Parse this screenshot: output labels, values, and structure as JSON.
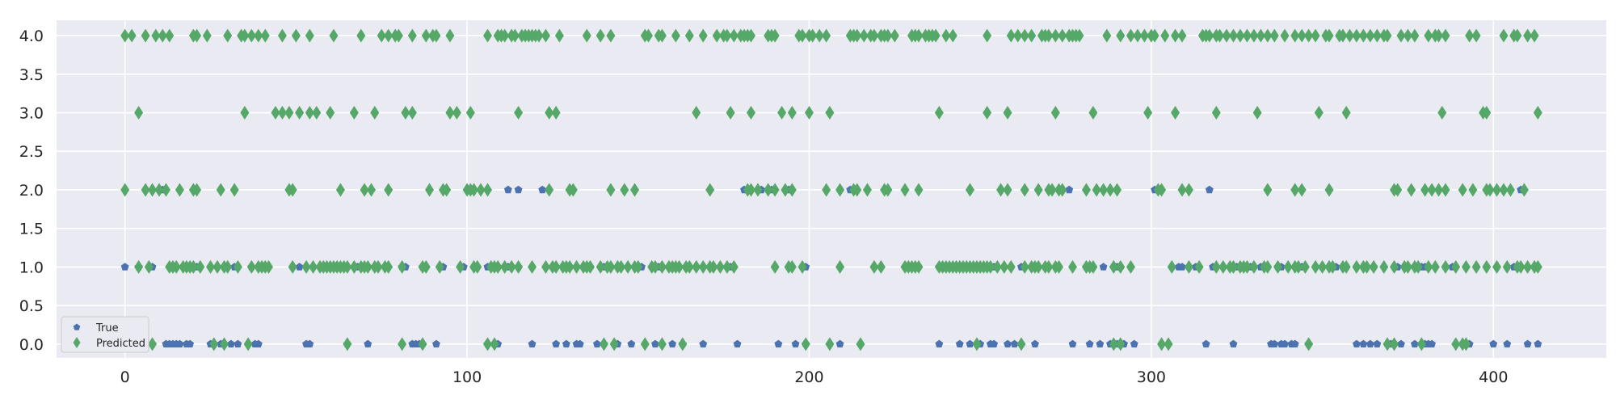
{
  "chart_data": {
    "type": "scatter",
    "title": "",
    "xlabel": "",
    "ylabel": "",
    "xlim": [
      -20,
      433
    ],
    "ylim": [
      -0.18,
      4.2
    ],
    "xticks": [
      0,
      100,
      200,
      300,
      400
    ],
    "xtick_labels": [
      "0",
      "100",
      "200",
      "300",
      "400"
    ],
    "yticks": [
      0.0,
      0.5,
      1.0,
      1.5,
      2.0,
      2.5,
      3.0,
      3.5,
      4.0
    ],
    "ytick_labels": [
      "0.0",
      "0.5",
      "1.0",
      "1.5",
      "2.0",
      "2.5",
      "3.0",
      "3.5",
      "4.0"
    ],
    "grid": true,
    "legend_position": "lower-left",
    "colors": {
      "background": "#eaeaf2",
      "grid": "#ffffff",
      "true": "#4c72b0",
      "predicted": "#55a868"
    },
    "series": [
      {
        "name": "True",
        "marker": "pentagon",
        "points": {
          "0": [
            8,
            12,
            13,
            14,
            15,
            16,
            18,
            19,
            25,
            26,
            28,
            31,
            33,
            38,
            39,
            53,
            54,
            65,
            71,
            84,
            85,
            86,
            91,
            106,
            109,
            119,
            126,
            129,
            132,
            133,
            138,
            140,
            144,
            148,
            155,
            160,
            163,
            169,
            179,
            191,
            196,
            199,
            209,
            238,
            244,
            247,
            250,
            253,
            254,
            258,
            260,
            266,
            277,
            282,
            285,
            288,
            290,
            292,
            295,
            316,
            324,
            335,
            336,
            338,
            339,
            341,
            342,
            346,
            360,
            362,
            364,
            366,
            370,
            373,
            377,
            380,
            381,
            382,
            393,
            400,
            404,
            410,
            413
          ],
          "1": [
            0,
            4,
            8,
            15,
            18,
            21,
            29,
            32,
            37,
            51,
            58,
            61,
            68,
            71,
            73,
            81,
            82,
            87,
            93,
            99,
            106,
            109,
            112,
            115,
            125,
            140,
            151,
            156,
            164,
            177,
            199,
            238,
            250,
            253,
            254,
            262,
            266,
            269,
            281,
            286,
            290,
            308,
            309,
            313,
            318,
            325,
            329,
            332,
            337,
            338,
            344,
            350,
            354,
            365,
            372,
            379,
            380,
            388,
            406,
            410
          ],
          "2": [
            11,
            112,
            115,
            122,
            181,
            186,
            189,
            194,
            212,
            276,
            301,
            317,
            408
          ]
        }
      },
      {
        "name": "Predicted",
        "marker": "diamond",
        "points": {
          "0": [
            8,
            26,
            29,
            36,
            65,
            81,
            87,
            106,
            108,
            140,
            143,
            152,
            157,
            163,
            199,
            206,
            215,
            249,
            262,
            289,
            291,
            303,
            305,
            346,
            369,
            371,
            379,
            389,
            391,
            392
          ],
          "1": [
            4,
            7,
            13,
            14,
            15,
            17,
            18,
            19,
            20,
            22,
            25,
            27,
            29,
            30,
            33,
            37,
            39,
            40,
            41,
            42,
            49,
            53,
            55,
            57,
            58,
            59,
            60,
            61,
            62,
            63,
            64,
            65,
            67,
            69,
            70,
            71,
            73,
            74,
            76,
            77,
            81,
            87,
            88,
            92,
            98,
            102,
            103,
            107,
            108,
            109,
            111,
            113,
            115,
            119,
            123,
            125,
            126,
            128,
            129,
            130,
            132,
            134,
            135,
            136,
            139,
            141,
            142,
            144,
            145,
            147,
            149,
            150,
            154,
            155,
            157,
            159,
            160,
            161,
            162,
            164,
            165,
            167,
            169,
            171,
            172,
            174,
            176,
            178,
            190,
            194,
            195,
            198,
            209,
            219,
            221,
            228,
            229,
            230,
            231,
            232,
            238,
            239,
            240,
            241,
            242,
            243,
            244,
            245,
            246,
            247,
            248,
            249,
            250,
            251,
            252,
            253,
            255,
            257,
            259,
            263,
            265,
            266,
            267,
            269,
            270,
            272,
            273,
            277,
            281,
            282,
            283,
            289,
            291,
            294,
            306,
            311,
            314,
            319,
            321,
            323,
            324,
            326,
            327,
            328,
            330,
            333,
            334,
            337,
            340,
            342,
            343,
            345,
            348,
            350,
            352,
            353,
            356,
            357,
            360,
            362,
            363,
            365,
            368,
            371,
            374,
            375,
            377,
            378,
            381,
            383,
            386,
            389,
            392,
            395,
            398,
            401,
            404,
            407,
            408,
            410,
            412,
            413
          ],
          "2": [
            0,
            6,
            8,
            10,
            12,
            16,
            20,
            21,
            28,
            32,
            48,
            49,
            63,
            70,
            72,
            77,
            89,
            93,
            94,
            100,
            101,
            102,
            104,
            106,
            124,
            130,
            131,
            142,
            146,
            149,
            171,
            182,
            183,
            185,
            188,
            190,
            193,
            195,
            205,
            209,
            213,
            214,
            217,
            222,
            223,
            228,
            232,
            247,
            256,
            258,
            263,
            267,
            270,
            271,
            273,
            274,
            281,
            284,
            286,
            288,
            290,
            302,
            303,
            309,
            311,
            334,
            342,
            344,
            352,
            371,
            372,
            376,
            380,
            382,
            384,
            386,
            391,
            394,
            398,
            399,
            401,
            403,
            405,
            409
          ],
          "3": [
            4,
            35,
            44,
            46,
            48,
            51,
            54,
            56,
            60,
            67,
            73,
            82,
            84,
            95,
            97,
            101,
            115,
            124,
            126,
            167,
            177,
            183,
            192,
            195,
            200,
            206,
            238,
            252,
            258,
            272,
            283,
            299,
            307,
            319,
            331,
            349,
            357,
            385,
            397,
            398,
            413
          ],
          "4": [
            0,
            2,
            6,
            9,
            11,
            13,
            20,
            21,
            24,
            30,
            34,
            35,
            37,
            39,
            41,
            46,
            50,
            54,
            61,
            69,
            75,
            77,
            79,
            80,
            84,
            88,
            90,
            91,
            95,
            106,
            109,
            110,
            111,
            113,
            114,
            116,
            117,
            118,
            119,
            120,
            121,
            123,
            127,
            135,
            139,
            142,
            152,
            153,
            156,
            157,
            161,
            165,
            169,
            173,
            175,
            176,
            178,
            180,
            181,
            182,
            183,
            188,
            189,
            190,
            197,
            198,
            200,
            201,
            203,
            205,
            212,
            213,
            214,
            216,
            218,
            219,
            221,
            222,
            223,
            225,
            230,
            231,
            232,
            234,
            235,
            236,
            237,
            240,
            242,
            252,
            259,
            261,
            263,
            265,
            268,
            269,
            270,
            272,
            274,
            276,
            277,
            278,
            279,
            287,
            291,
            294,
            296,
            298,
            300,
            301,
            304,
            307,
            309,
            315,
            316,
            317,
            319,
            320,
            322,
            324,
            326,
            328,
            330,
            332,
            334,
            336,
            339,
            342,
            344,
            346,
            348,
            351,
            352,
            355,
            356,
            358,
            360,
            362,
            364,
            366,
            368,
            369,
            373,
            375,
            377,
            381,
            383,
            384,
            386,
            393,
            395,
            403,
            406,
            407,
            410,
            412
          ]
        }
      }
    ]
  }
}
